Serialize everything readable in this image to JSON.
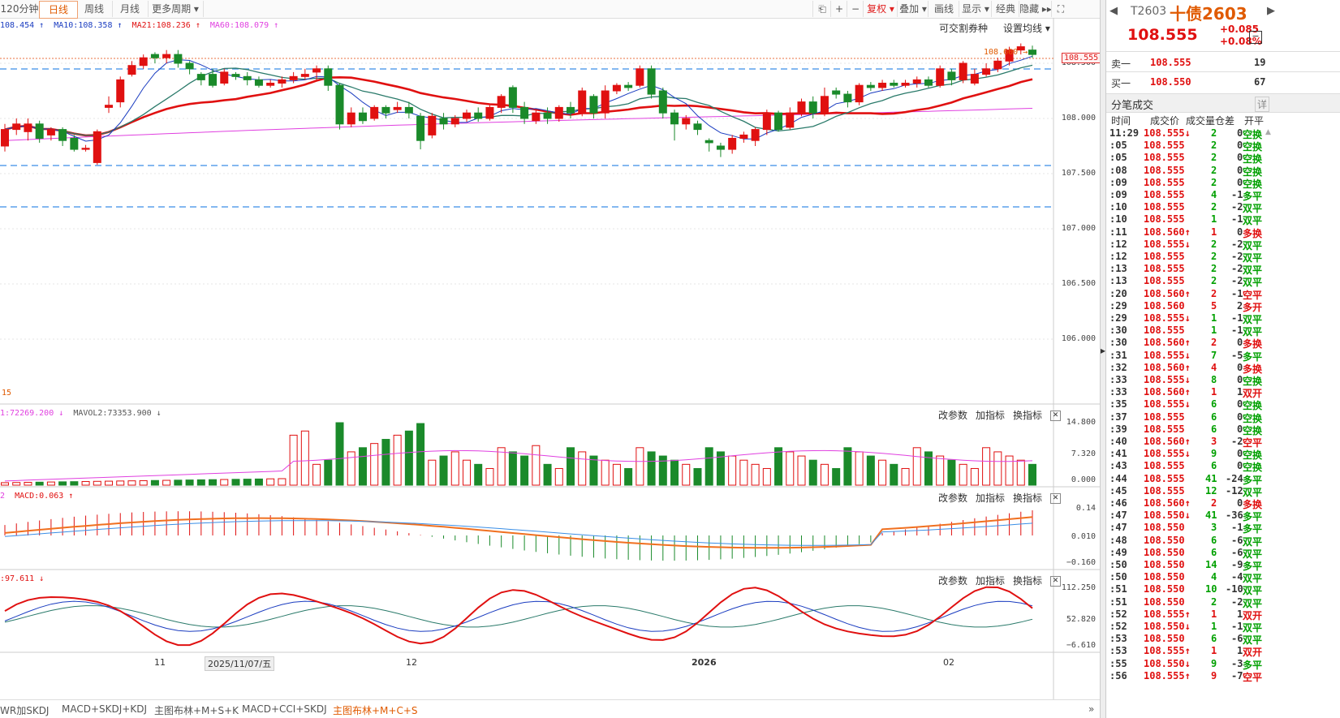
{
  "toolbar": {
    "periods": [
      "120分钟",
      "日线",
      "周线",
      "月线",
      "更多周期 ▾"
    ],
    "active_period": 1,
    "right_buttons": [
      "⎗",
      "+",
      "−",
      "复权 ▾",
      "叠加 ▾",
      "画线",
      "显示 ▾",
      "经典",
      "隐藏 ▸▸",
      "⛶"
    ]
  },
  "ma_legend": {
    "ma5": "108.454 ↑",
    "ma10": "MA10:108.358 ↑",
    "ma21": "MA21:108.236 ↑",
    "ma60": "MA60:108.079 ↑"
  },
  "main_controls": {
    "deliverable": "可交割券种",
    "set_ma": "设置均线 ▾"
  },
  "price_axis": [
    "108.500",
    "108.000",
    "107.500",
    "107.000",
    "106.500",
    "106.000"
  ],
  "last_price_tag": "108.555",
  "high_annot": "108.600 →",
  "low_annot": "15",
  "vol_legend": {
    "mavol1": "1:72269.200 ↓",
    "mavol2": "MAVOL2:73353.900 ↓"
  },
  "vol_axis": [
    "14.800",
    "7.320",
    "0.000"
  ],
  "macd_legend": {
    "first": "2",
    "macd": "MACD:0.063 ↑"
  },
  "macd_axis": [
    "0.14",
    "0.010",
    "−0.160"
  ],
  "kdj_legend": ":97.611 ↓",
  "kdj_axis": [
    "112.250",
    "52.820",
    "−6.610"
  ],
  "indicator_buttons": {
    "edit": "改参数",
    "add": "加指标",
    "swap": "换指标"
  },
  "date_axis": {
    "d11": "11",
    "d_marker": "2025/11/07/五",
    "d12": "12",
    "d2026": "2026",
    "d02": "02"
  },
  "bottom_tabs": [
    "WR加SKDJ",
    "MACD+SKDJ+KDJ",
    "主图布林+M+S+K",
    "MACD+CCI+SKDJ",
    "主图布林+M+C+S"
  ],
  "active_bottom_tab": 4,
  "quote": {
    "code": "T2603",
    "name": "十债2603",
    "price": "108.555",
    "change": "+0.085",
    "change_pct": "+0.08%",
    "sell_label": "卖一",
    "sell_price": "108.555",
    "sell_qty": "19",
    "buy_label": "买一",
    "buy_price": "108.550",
    "buy_qty": "67",
    "ticks_title": "分笔成交",
    "detail_btn": "详",
    "cols": [
      "时间",
      "成交价",
      "成交量",
      "仓差",
      "开平"
    ]
  },
  "ticks": [
    [
      "11:29",
      "108.555↓",
      "2",
      "0",
      "空换",
      "g"
    ],
    [
      ":05",
      "108.555",
      "2",
      "0",
      "空换",
      "g"
    ],
    [
      ":05",
      "108.555",
      "2",
      "0",
      "空换",
      "g"
    ],
    [
      ":08",
      "108.555",
      "2",
      "0",
      "空换",
      "g"
    ],
    [
      ":09",
      "108.555",
      "2",
      "0",
      "空换",
      "g"
    ],
    [
      ":09",
      "108.555",
      "4",
      "-1",
      "多平",
      "g"
    ],
    [
      ":10",
      "108.555",
      "2",
      "-2",
      "双平",
      "g"
    ],
    [
      ":10",
      "108.555",
      "1",
      "-1",
      "双平",
      "g"
    ],
    [
      ":11",
      "108.560↑",
      "1",
      "0",
      "多换",
      "r"
    ],
    [
      ":12",
      "108.555↓",
      "2",
      "-2",
      "双平",
      "g"
    ],
    [
      ":12",
      "108.555",
      "2",
      "-2",
      "双平",
      "g"
    ],
    [
      ":13",
      "108.555",
      "2",
      "-2",
      "双平",
      "g"
    ],
    [
      ":13",
      "108.555",
      "2",
      "-2",
      "双平",
      "g"
    ],
    [
      ":20",
      "108.560↑",
      "2",
      "-1",
      "空平",
      "r"
    ],
    [
      ":29",
      "108.560",
      "5",
      "2",
      "多开",
      "r"
    ],
    [
      ":29",
      "108.555↓",
      "1",
      "-1",
      "双平",
      "g"
    ],
    [
      ":30",
      "108.555",
      "1",
      "-1",
      "双平",
      "g"
    ],
    [
      ":30",
      "108.560↑",
      "2",
      "0",
      "多换",
      "r"
    ],
    [
      ":31",
      "108.555↓",
      "7",
      "-5",
      "多平",
      "g"
    ],
    [
      ":32",
      "108.560↑",
      "4",
      "0",
      "多换",
      "r"
    ],
    [
      ":33",
      "108.555↓",
      "8",
      "0",
      "空换",
      "g"
    ],
    [
      ":33",
      "108.560↑",
      "1",
      "1",
      "双开",
      "r"
    ],
    [
      ":35",
      "108.555↓",
      "6",
      "0",
      "空换",
      "g"
    ],
    [
      ":37",
      "108.555",
      "6",
      "0",
      "空换",
      "g"
    ],
    [
      ":39",
      "108.555",
      "6",
      "0",
      "空换",
      "g"
    ],
    [
      ":40",
      "108.560↑",
      "3",
      "-2",
      "空平",
      "r"
    ],
    [
      ":41",
      "108.555↓",
      "9",
      "0",
      "空换",
      "g"
    ],
    [
      ":43",
      "108.555",
      "6",
      "0",
      "空换",
      "g"
    ],
    [
      ":44",
      "108.555",
      "41",
      "-24",
      "多平",
      "g"
    ],
    [
      ":45",
      "108.555",
      "12",
      "-12",
      "双平",
      "g"
    ],
    [
      ":46",
      "108.560↑",
      "2",
      "0",
      "多换",
      "r"
    ],
    [
      ":47",
      "108.550↓",
      "41",
      "-36",
      "多平",
      "g"
    ],
    [
      ":47",
      "108.550",
      "3",
      "-1",
      "多平",
      "g"
    ],
    [
      ":48",
      "108.550",
      "6",
      "-6",
      "双平",
      "g"
    ],
    [
      ":49",
      "108.550",
      "6",
      "-6",
      "双平",
      "g"
    ],
    [
      ":50",
      "108.550",
      "14",
      "-9",
      "多平",
      "g"
    ],
    [
      ":50",
      "108.550",
      "4",
      "-4",
      "双平",
      "g"
    ],
    [
      ":51",
      "108.550",
      "10",
      "-10",
      "双平",
      "g"
    ],
    [
      ":51",
      "108.550",
      "2",
      "-2",
      "双平",
      "g"
    ],
    [
      ":52",
      "108.555↑",
      "1",
      "1",
      "双开",
      "r"
    ],
    [
      ":52",
      "108.550↓",
      "1",
      "-1",
      "双平",
      "g"
    ],
    [
      ":53",
      "108.550",
      "6",
      "-6",
      "双平",
      "g"
    ],
    [
      ":53",
      "108.555↑",
      "1",
      "1",
      "双开",
      "r"
    ],
    [
      ":55",
      "108.550↓",
      "9",
      "-3",
      "多平",
      "g"
    ],
    [
      ":56",
      "108.555↑",
      "9",
      "-7",
      "空平",
      "r"
    ]
  ],
  "chart_data": {
    "type": "candlestick",
    "y_main_range": [
      105.7,
      108.7
    ],
    "candles": [
      [
        107.75,
        107.9,
        107.7,
        107.95
      ],
      [
        107.9,
        107.95,
        107.85,
        108.0
      ],
      [
        107.88,
        107.95,
        107.8,
        108.0
      ],
      [
        107.95,
        107.82,
        107.78,
        107.98
      ],
      [
        107.85,
        107.9,
        107.8,
        107.92
      ],
      [
        107.9,
        107.8,
        107.75,
        107.92
      ],
      [
        107.82,
        107.72,
        107.7,
        107.85
      ],
      [
        107.72,
        107.73,
        107.7,
        107.76
      ],
      [
        107.6,
        107.88,
        107.58,
        107.9
      ],
      [
        108.1,
        108.12,
        108.05,
        108.2
      ],
      [
        108.15,
        108.35,
        108.1,
        108.38
      ],
      [
        108.4,
        108.48,
        108.38,
        108.52
      ],
      [
        108.48,
        108.55,
        108.45,
        108.58
      ],
      [
        108.58,
        108.55,
        108.5,
        108.6
      ],
      [
        108.55,
        108.58,
        108.5,
        108.62
      ],
      [
        108.58,
        108.5,
        108.46,
        108.62
      ],
      [
        108.5,
        108.45,
        108.4,
        108.52
      ],
      [
        108.4,
        108.35,
        108.3,
        108.42
      ],
      [
        108.4,
        108.3,
        108.28,
        108.45
      ],
      [
        108.32,
        108.42,
        108.3,
        108.45
      ],
      [
        108.4,
        108.38,
        108.35,
        108.42
      ],
      [
        108.38,
        108.35,
        108.3,
        108.42
      ],
      [
        108.35,
        108.3,
        108.28,
        108.38
      ],
      [
        108.3,
        108.32,
        108.28,
        108.35
      ],
      [
        108.32,
        108.35,
        108.28,
        108.38
      ],
      [
        108.35,
        108.38,
        108.32,
        108.42
      ],
      [
        108.38,
        108.4,
        108.35,
        108.45
      ],
      [
        108.42,
        108.45,
        108.35,
        108.48
      ],
      [
        108.45,
        108.3,
        108.25,
        108.48
      ],
      [
        108.3,
        107.95,
        107.9,
        108.32
      ],
      [
        107.95,
        108.05,
        107.92,
        108.1
      ],
      [
        108.05,
        107.98,
        107.95,
        108.1
      ],
      [
        108.0,
        108.1,
        107.98,
        108.12
      ],
      [
        108.1,
        108.05,
        108.0,
        108.12
      ],
      [
        108.08,
        108.1,
        108.05,
        108.15
      ],
      [
        108.1,
        108.05,
        108.0,
        108.15
      ],
      [
        108.02,
        107.8,
        107.72,
        108.05
      ],
      [
        107.85,
        108.02,
        107.82,
        108.05
      ],
      [
        108.0,
        107.95,
        107.9,
        108.05
      ],
      [
        107.95,
        108.0,
        107.92,
        108.03
      ],
      [
        108.0,
        108.05,
        107.97,
        108.08
      ],
      [
        108.05,
        108.0,
        107.97,
        108.1
      ],
      [
        108.0,
        108.1,
        107.98,
        108.12
      ],
      [
        108.1,
        108.2,
        108.05,
        108.22
      ],
      [
        108.28,
        108.1,
        108.05,
        108.3
      ],
      [
        108.1,
        108.0,
        107.95,
        108.15
      ],
      [
        107.98,
        108.05,
        107.95,
        108.08
      ],
      [
        108.05,
        108.0,
        107.95,
        108.1
      ],
      [
        108.0,
        108.1,
        107.97,
        108.12
      ],
      [
        108.1,
        108.05,
        108.0,
        108.15
      ],
      [
        108.05,
        108.25,
        108.02,
        108.28
      ],
      [
        108.2,
        108.05,
        108.0,
        108.22
      ],
      [
        108.05,
        108.25,
        108.0,
        108.3
      ],
      [
        108.25,
        108.3,
        108.22,
        108.32
      ],
      [
        108.3,
        108.28,
        108.25,
        108.33
      ],
      [
        108.3,
        108.45,
        108.28,
        108.48
      ],
      [
        108.45,
        108.22,
        108.18,
        108.48
      ],
      [
        108.25,
        108.05,
        108.0,
        108.28
      ],
      [
        108.05,
        107.95,
        107.8,
        108.08
      ],
      [
        107.95,
        108.0,
        107.9,
        108.03
      ],
      [
        107.95,
        107.9,
        107.85,
        107.98
      ],
      [
        107.8,
        107.78,
        107.7,
        107.82
      ],
      [
        107.75,
        107.72,
        107.65,
        107.78
      ],
      [
        107.72,
        107.82,
        107.68,
        107.85
      ],
      [
        107.82,
        107.85,
        107.78,
        107.88
      ],
      [
        107.8,
        107.9,
        107.75,
        107.92
      ],
      [
        107.9,
        108.05,
        107.85,
        108.08
      ],
      [
        108.05,
        107.9,
        107.88,
        108.07
      ],
      [
        107.92,
        108.05,
        107.9,
        108.1
      ],
      [
        108.05,
        108.15,
        108.02,
        108.18
      ],
      [
        108.15,
        108.05,
        108.0,
        108.2
      ],
      [
        108.05,
        108.2,
        108.02,
        108.28
      ],
      [
        108.25,
        108.22,
        108.18,
        108.28
      ],
      [
        108.22,
        108.15,
        108.1,
        108.25
      ],
      [
        108.15,
        108.3,
        108.12,
        108.32
      ],
      [
        108.3,
        108.28,
        108.25,
        108.33
      ],
      [
        108.28,
        108.32,
        108.25,
        108.35
      ],
      [
        108.32,
        108.3,
        108.28,
        108.35
      ],
      [
        108.3,
        108.32,
        108.28,
        108.35
      ],
      [
        108.32,
        108.35,
        108.28,
        108.38
      ],
      [
        108.35,
        108.3,
        108.28,
        108.38
      ],
      [
        108.3,
        108.45,
        108.28,
        108.48
      ],
      [
        108.42,
        108.35,
        108.3,
        108.45
      ],
      [
        108.35,
        108.5,
        108.32,
        108.52
      ],
      [
        108.32,
        108.4,
        108.3,
        108.45
      ],
      [
        108.4,
        108.45,
        108.38,
        108.5
      ],
      [
        108.45,
        108.52,
        108.42,
        108.55
      ],
      [
        108.52,
        108.62,
        108.48,
        108.65
      ],
      [
        108.62,
        108.65,
        108.58,
        108.68
      ],
      [
        108.62,
        108.58,
        108.55,
        108.66
      ]
    ],
    "macd_axis_range": [
      -0.2,
      0.16
    ],
    "kdj_axis_range": [
      -10,
      115
    ],
    "vol_axis_range": [
      0,
      15
    ]
  }
}
